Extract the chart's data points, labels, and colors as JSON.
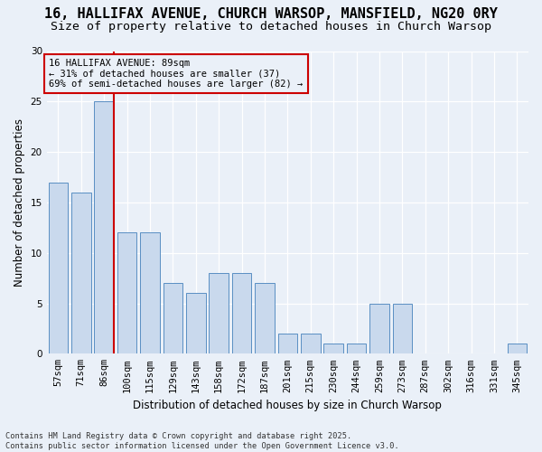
{
  "title": "16, HALLIFAX AVENUE, CHURCH WARSOP, MANSFIELD, NG20 0RY",
  "subtitle": "Size of property relative to detached houses in Church Warsop",
  "xlabel": "Distribution of detached houses by size in Church Warsop",
  "ylabel": "Number of detached properties",
  "categories": [
    "57sqm",
    "71sqm",
    "86sqm",
    "100sqm",
    "115sqm",
    "129sqm",
    "143sqm",
    "158sqm",
    "172sqm",
    "187sqm",
    "201sqm",
    "215sqm",
    "230sqm",
    "244sqm",
    "259sqm",
    "273sqm",
    "287sqm",
    "302sqm",
    "316sqm",
    "331sqm",
    "345sqm"
  ],
  "values": [
    17,
    16,
    25,
    12,
    12,
    7,
    6,
    8,
    8,
    7,
    2,
    2,
    1,
    1,
    5,
    5,
    0,
    0,
    0,
    0,
    1
  ],
  "bar_color": "#c9d9ed",
  "bar_edge_color": "#5a8fc3",
  "vline_after_index": 2,
  "vline_color": "#cc0000",
  "annotation_text": "16 HALLIFAX AVENUE: 89sqm\n← 31% of detached houses are smaller (37)\n69% of semi-detached houses are larger (82) →",
  "annotation_box_edgecolor": "#cc0000",
  "ylim": [
    0,
    30
  ],
  "yticks": [
    0,
    5,
    10,
    15,
    20,
    25,
    30
  ],
  "footer": "Contains HM Land Registry data © Crown copyright and database right 2025.\nContains public sector information licensed under the Open Government Licence v3.0.",
  "bg_color": "#eaf0f8",
  "grid_color": "#ffffff",
  "title_fontsize": 11,
  "subtitle_fontsize": 9.5,
  "annot_fontsize": 7.5,
  "tick_fontsize": 7.5,
  "ylabel_fontsize": 8.5,
  "xlabel_fontsize": 8.5,
  "footer_fontsize": 6.2
}
